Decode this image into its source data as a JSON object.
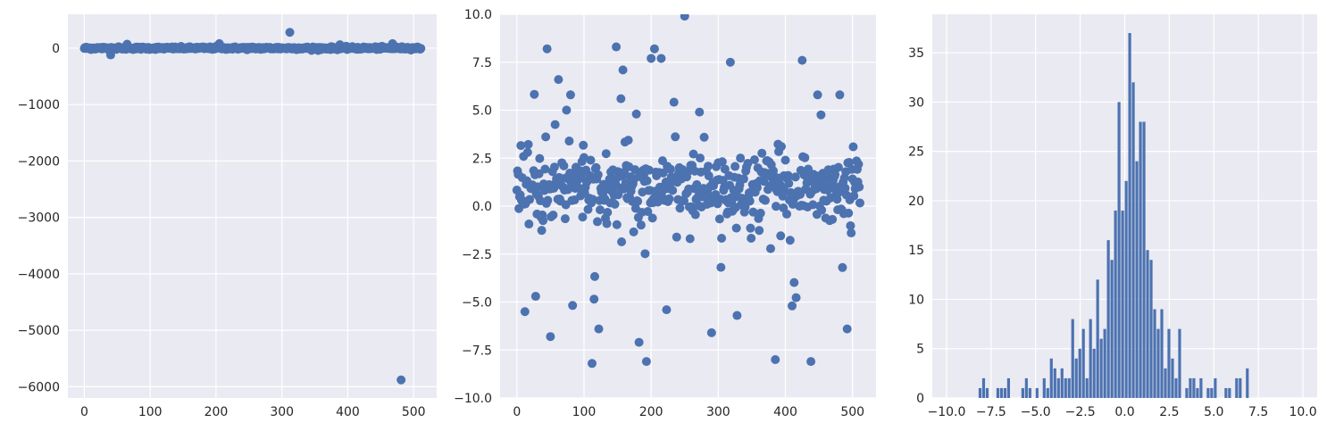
{
  "chart_data": [
    {
      "type": "scatter",
      "title": "",
      "xlabel": "",
      "ylabel": "",
      "xlim": [
        -25,
        535
      ],
      "ylim": [
        -6200,
        600
      ],
      "xticks": [
        0,
        100,
        200,
        300,
        400,
        500
      ],
      "yticks": [
        -6000,
        -5000,
        -4000,
        -3000,
        -2000,
        -1000,
        0
      ],
      "ytick_labels": [
        "−6000",
        "−5000",
        "−4000",
        "−3000",
        "−2000",
        "−1000",
        "0"
      ],
      "grid": true,
      "color": "#4c72b0",
      "outliers": [
        [
          40,
          -120
        ],
        [
          65,
          70
        ],
        [
          205,
          80
        ],
        [
          312,
          280
        ],
        [
          345,
          -40
        ],
        [
          388,
          60
        ],
        [
          468,
          80
        ],
        [
          481,
          -5880
        ]
      ]
    },
    {
      "type": "scatter",
      "title": "",
      "xlabel": "",
      "ylabel": "",
      "xlim": [
        -25,
        535
      ],
      "ylim": [
        -10,
        10
      ],
      "xticks": [
        0,
        100,
        200,
        300,
        400,
        500
      ],
      "yticks": [
        -10,
        -7.5,
        -5,
        -2.5,
        0,
        2.5,
        5,
        7.5,
        10
      ],
      "ytick_labels": [
        "−10.0",
        "−7.5",
        "−5.0",
        "−2.5",
        "0.0",
        "2.5",
        "5.0",
        "7.5",
        "10.0"
      ],
      "grid": true,
      "color": "#4c72b0",
      "extremes": [
        [
          12,
          -5.5
        ],
        [
          28,
          -4.7
        ],
        [
          45,
          8.2
        ],
        [
          50,
          -6.8
        ],
        [
          62,
          6.6
        ],
        [
          80,
          5.8
        ],
        [
          112,
          -8.2
        ],
        [
          122,
          -6.4
        ],
        [
          148,
          8.3
        ],
        [
          155,
          5.6
        ],
        [
          158,
          7.1
        ],
        [
          178,
          4.8
        ],
        [
          182,
          -7.1
        ],
        [
          193,
          -8.1
        ],
        [
          200,
          7.7
        ],
        [
          205,
          8.2
        ],
        [
          215,
          7.7
        ],
        [
          223,
          -5.4
        ],
        [
          250,
          9.9
        ],
        [
          272,
          4.9
        ],
        [
          290,
          -6.6
        ],
        [
          318,
          7.5
        ],
        [
          328,
          -5.7
        ],
        [
          385,
          -8.0
        ],
        [
          410,
          -5.2
        ],
        [
          425,
          7.6
        ],
        [
          438,
          -8.1
        ],
        [
          448,
          5.8
        ],
        [
          481,
          5.8
        ],
        [
          485,
          -3.2
        ],
        [
          492,
          -6.4
        ]
      ]
    },
    {
      "type": "bar",
      "title": "",
      "xlabel": "",
      "ylabel": "",
      "xlim": [
        -10.8,
        10.8
      ],
      "ylim": [
        0,
        38.9
      ],
      "xticks": [
        -10,
        -7.5,
        -5,
        -2.5,
        0,
        2.5,
        5,
        7.5,
        10
      ],
      "xtick_labels": [
        "−10.0",
        "−7.5",
        "−5.0",
        "−2.5",
        "0.0",
        "2.5",
        "5.0",
        "7.5",
        "10.0"
      ],
      "yticks": [
        0,
        5,
        10,
        15,
        20,
        25,
        30,
        35
      ],
      "grid": true,
      "color": "#4c72b0",
      "bin_edges_start": -10,
      "bin_width": 0.2,
      "values": [
        0,
        0,
        0,
        0,
        0,
        0,
        0,
        0,
        0,
        1,
        2,
        1,
        0,
        0,
        1,
        1,
        1,
        2,
        0,
        0,
        0,
        1,
        2,
        1,
        0,
        1,
        0,
        2,
        1,
        4,
        3,
        2,
        3,
        2,
        2,
        8,
        4,
        5,
        7,
        2,
        8,
        5,
        12,
        6,
        7,
        16,
        14,
        19,
        30,
        19,
        22,
        37,
        32,
        24,
        28,
        28,
        15,
        14,
        9,
        7,
        9,
        3,
        7,
        4,
        2,
        7,
        0,
        1,
        2,
        2,
        1,
        2,
        0,
        1,
        1,
        2,
        0,
        0,
        1,
        1,
        0,
        2,
        2,
        0,
        3,
        0,
        0,
        0,
        0,
        0,
        0,
        0,
        0,
        0,
        0,
        0,
        0,
        0,
        0,
        0
      ]
    }
  ]
}
